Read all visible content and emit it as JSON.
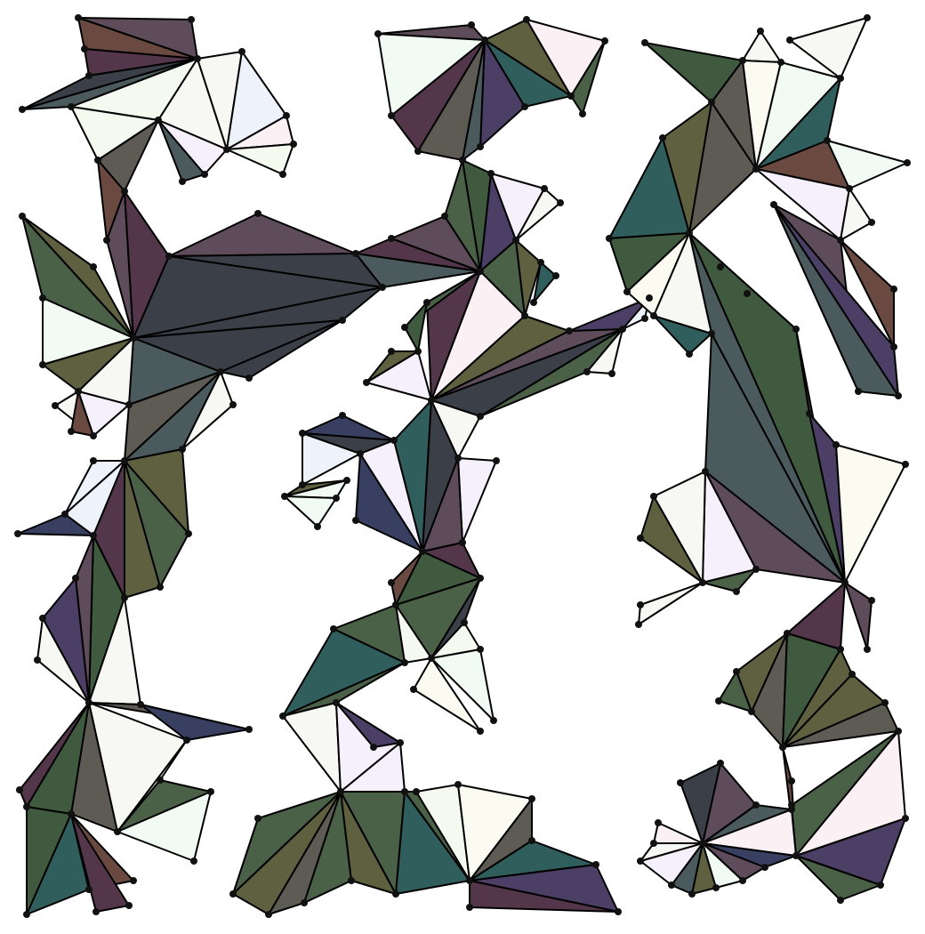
{
  "palette": {
    "background": "#ffffff",
    "edge": "#000000",
    "node": "#111111",
    "fills": {
      "ink": "#3a3f48",
      "slate": "#4b5a5c",
      "olive": "#5e6040",
      "moss": "#4a6148",
      "forest": "#3f5a3f",
      "teal": "#2f5e5c",
      "plum": "#53364a",
      "mauve": "#5f4c5a",
      "rust": "#6a4a40",
      "navy": "#383f60",
      "violet": "#4b3f66",
      "ash": "#5d5b54",
      "mint": "#f1fbf4",
      "ice": "#eef3fb",
      "blush": "#fbf0f3",
      "lilac": "#f5f0fb",
      "cream": "#fbfbf1",
      "pearl": "#f7f7f4",
      "pale": "#f4faf0",
      "rose": "#fbeeee"
    }
  }
}
